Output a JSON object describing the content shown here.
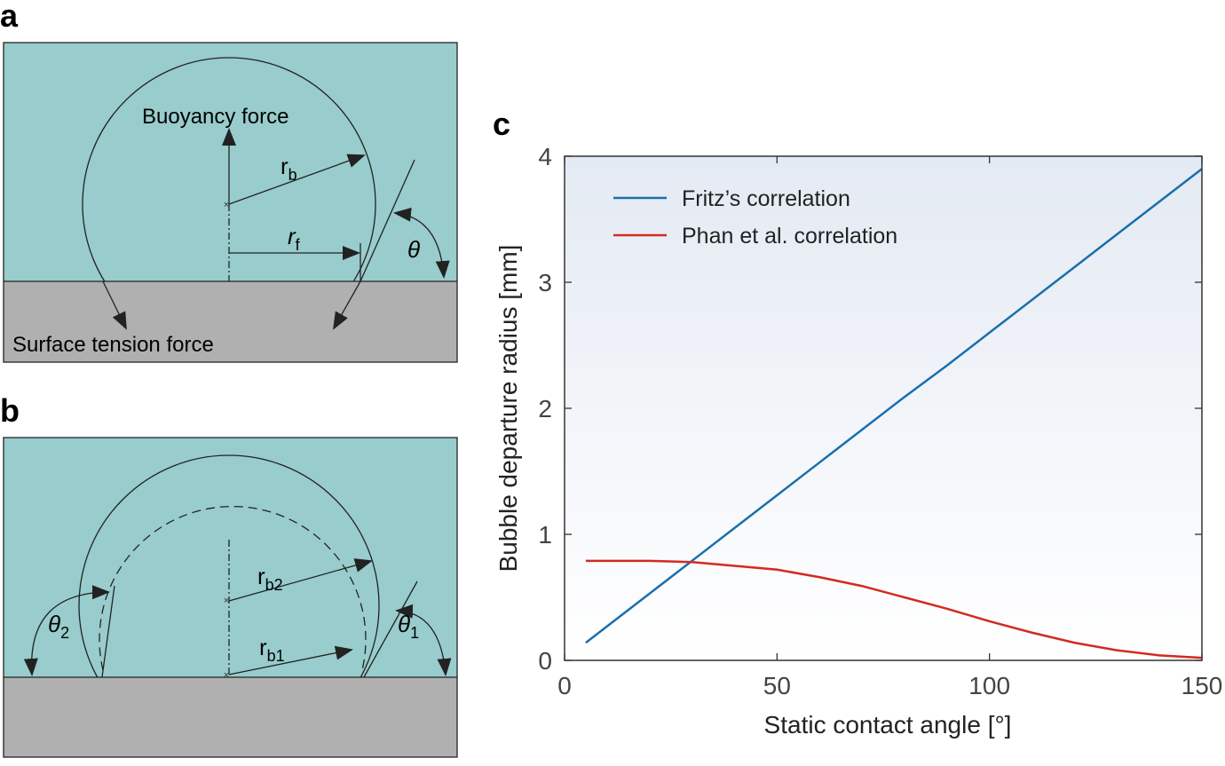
{
  "panels": [
    {
      "label": "a",
      "buoyancy": "Buoyancy force",
      "surface_tension": "Surface tension force",
      "rb": {
        "main": "r",
        "sub": "b"
      },
      "rf": {
        "main": "r",
        "sub": "f"
      },
      "theta": "θ"
    },
    {
      "label": "b",
      "rb2": {
        "main": "r",
        "sub": "b2"
      },
      "rb1": {
        "main": "r",
        "sub": "b1"
      },
      "theta1": {
        "main": "θ",
        "sub": "1"
      },
      "theta2": {
        "main": "θ",
        "sub": "2"
      }
    }
  ],
  "chart_label": "c",
  "chart_data": {
    "type": "line",
    "x_label": "Static contact angle [°]",
    "y_label": "Bubble departure radius [mm]",
    "x": [
      5,
      10,
      20,
      30,
      40,
      50,
      60,
      70,
      80,
      90,
      100,
      110,
      120,
      130,
      140,
      150
    ],
    "series": [
      {
        "name": "Fritz’s correlation",
        "color": "#1a6fad",
        "values": [
          0.14,
          0.27,
          0.53,
          0.79,
          1.05,
          1.31,
          1.57,
          1.83,
          2.09,
          2.34,
          2.6,
          2.86,
          3.12,
          3.38,
          3.64,
          3.9
        ]
      },
      {
        "name": "Phan et al. correlation",
        "color": "#d42a20",
        "values": [
          0.79,
          0.79,
          0.79,
          0.78,
          0.75,
          0.72,
          0.66,
          0.59,
          0.5,
          0.41,
          0.31,
          0.22,
          0.14,
          0.08,
          0.04,
          0.02
        ]
      }
    ],
    "xlim": [
      0,
      150
    ],
    "xticks": [
      0,
      50,
      100,
      150
    ],
    "ylim": [
      0,
      4
    ],
    "yticks": [
      0,
      1,
      2,
      3,
      4
    ],
    "legend": "upper left"
  }
}
